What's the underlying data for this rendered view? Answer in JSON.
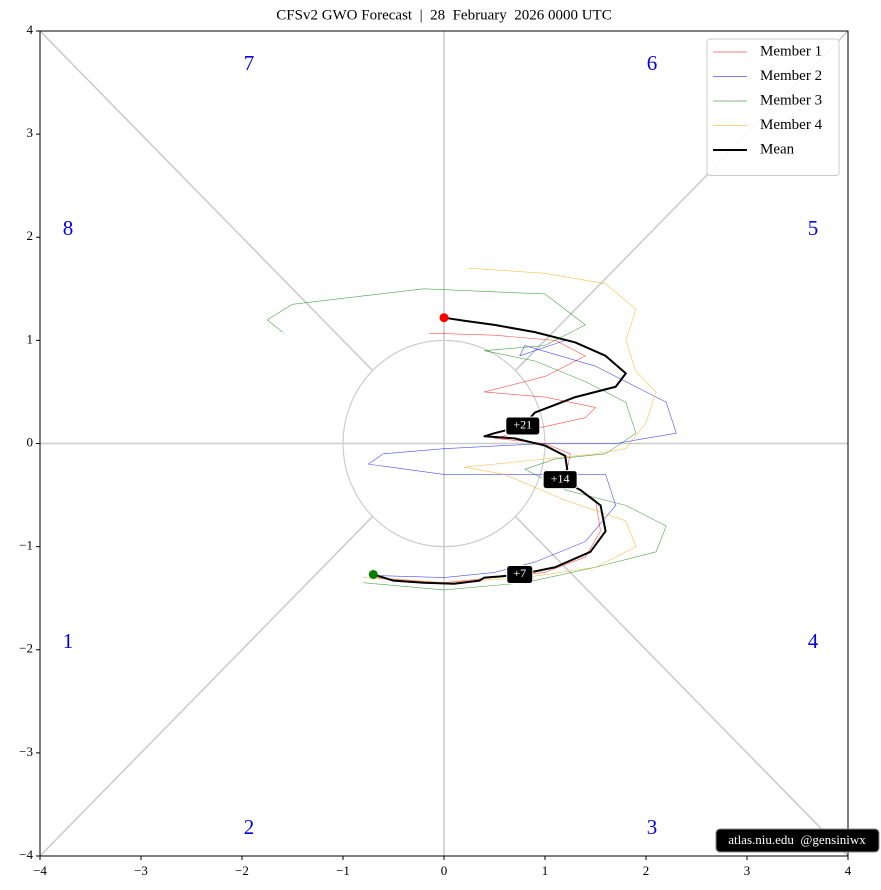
{
  "chart_data": {
    "type": "line",
    "title": "CFSv2 GWO Forecast  |  28  February  2026 0000 UTC",
    "xlim": [
      -4,
      4
    ],
    "ylim": [
      -4,
      4
    ],
    "xticks": [
      {
        "value": -4,
        "label": "−4"
      },
      {
        "value": -3,
        "label": "−3"
      },
      {
        "value": -2,
        "label": "−2"
      },
      {
        "value": -1,
        "label": "−1"
      },
      0,
      1,
      2,
      3,
      4
    ],
    "yticks": [
      {
        "value": -4,
        "label": "−4"
      },
      {
        "value": -3,
        "label": "−3"
      },
      {
        "value": -2,
        "label": "−2"
      },
      {
        "value": -1,
        "label": "−1"
      },
      0,
      1,
      2,
      3,
      4
    ],
    "legend": "upper right",
    "phase_labels": [
      "1",
      "2",
      "3",
      "4",
      "5",
      "6",
      "7",
      "8"
    ],
    "day_labels": [
      "+7",
      "+14",
      "+21"
    ],
    "watermark": "atlas.niu.edu  @gensiniwx",
    "start_color": "#008000",
    "end_color": "#ff0000",
    "series": [
      {
        "name": "Member 1",
        "color": "#ff0000",
        "x": [
          -0.7,
          0,
          0.5,
          1.0,
          1.4,
          1.55,
          1.5,
          1.2,
          1.25,
          1.0,
          0.5,
          0.7,
          1.4,
          1.5,
          1.0,
          0.4,
          1.0,
          1.4,
          1.1,
          0.5,
          -0.15
        ],
        "values": [
          -1.3,
          -1.35,
          -1.3,
          -1.25,
          -1.1,
          -0.85,
          -0.55,
          -0.35,
          -0.1,
          0.0,
          0.05,
          0.1,
          0.25,
          0.35,
          0.45,
          0.5,
          0.65,
          0.85,
          1.0,
          1.05,
          1.07
        ]
      },
      {
        "name": "Member 2",
        "color": "#0000ff",
        "x": [
          -0.7,
          0,
          0.5,
          0.9,
          1.4,
          1.7,
          1.6,
          1.1,
          0,
          -0.75,
          -0.6,
          0,
          1.0,
          1.7,
          2.3,
          2.2,
          1.5,
          0.8,
          0.75,
          1.2
        ],
        "values": [
          -1.28,
          -1.3,
          -1.25,
          -1.15,
          -0.95,
          -0.6,
          -0.3,
          -0.3,
          -0.3,
          -0.2,
          -0.1,
          -0.05,
          0,
          0,
          0.1,
          0.4,
          0.75,
          0.95,
          0.85,
          1.0
        ]
      },
      {
        "name": "Member 3",
        "color": "#008000",
        "x": [
          -0.8,
          0,
          0.8,
          1.5,
          2.1,
          2.2,
          1.8,
          1.2,
          0.8,
          1.1,
          1.6,
          1.9,
          1.8,
          1.4,
          0.9,
          0.4,
          1.0,
          1.4,
          1.0,
          -0.2,
          -1.5,
          -1.75,
          -1.6
        ],
        "values": [
          -1.35,
          -1.42,
          -1.35,
          -1.2,
          -1.05,
          -0.8,
          -0.6,
          -0.45,
          -0.25,
          -0.15,
          -0.1,
          0.1,
          0.4,
          0.6,
          0.8,
          0.9,
          0.95,
          1.15,
          1.45,
          1.5,
          1.35,
          1.2,
          1.08
        ]
      },
      {
        "name": "Member 4",
        "color": "#ffa500",
        "x": [
          -0.8,
          0,
          0.8,
          1.5,
          1.9,
          1.8,
          1.2,
          0.6,
          0.2,
          0.5,
          1.5,
          1.8,
          2.0,
          2.1,
          1.9,
          1.8,
          1.9,
          1.6,
          1.0,
          0.25
        ],
        "values": [
          -1.3,
          -1.35,
          -1.3,
          -1.2,
          -1.0,
          -0.75,
          -0.55,
          -0.3,
          -0.23,
          -0.2,
          -0.1,
          -0.05,
          0.2,
          0.5,
          0.7,
          1.0,
          1.3,
          1.55,
          1.65,
          1.7
        ]
      },
      {
        "name": "Mean",
        "color": "#000000",
        "x": [
          -0.7,
          -0.5,
          -0.2,
          0.1,
          0.35,
          0.4,
          0.55,
          0.75,
          1.1,
          1.45,
          1.6,
          1.55,
          1.35,
          1.2,
          1.15,
          1.22,
          1.2,
          1.0,
          0.7,
          0.4,
          0.5,
          0.78,
          0.9,
          1.3,
          1.7,
          1.8,
          1.6,
          1.3,
          0.9,
          0.5,
          0.2,
          0
        ],
        "values": [
          -1.27,
          -1.33,
          -1.35,
          -1.36,
          -1.33,
          -1.3,
          -1.29,
          -1.27,
          -1.2,
          -1.05,
          -0.85,
          -0.6,
          -0.45,
          -0.38,
          -0.35,
          -0.25,
          -0.12,
          -0.02,
          0.05,
          0.07,
          0.1,
          0.17,
          0.3,
          0.45,
          0.55,
          0.68,
          0.85,
          0.98,
          1.08,
          1.15,
          1.19,
          1.22
        ]
      }
    ]
  }
}
